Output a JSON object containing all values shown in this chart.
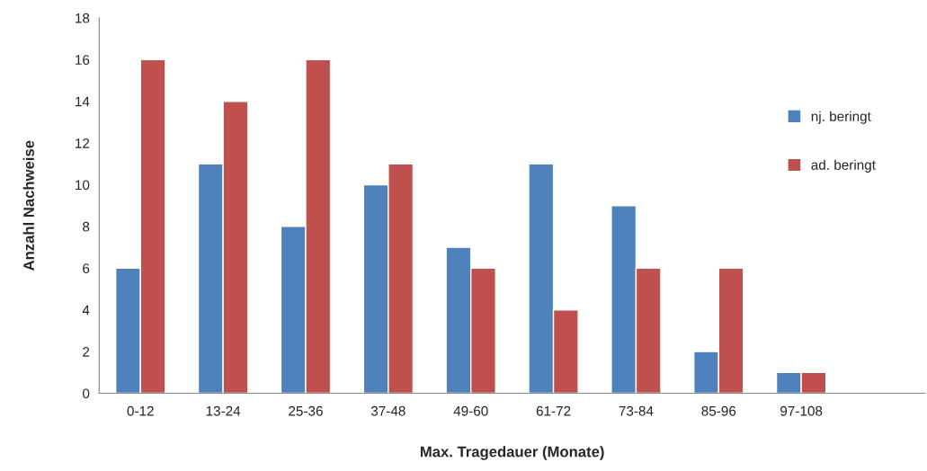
{
  "chart_data": {
    "type": "bar",
    "xlabel": "Max. Tragedauer (Monate)",
    "ylabel": "Anzahl Nachweise",
    "categories": [
      "0-12",
      "13-24",
      "25-36",
      "37-48",
      "49-60",
      "61-72",
      "73-84",
      "85-96",
      "97-108",
      null
    ],
    "series": [
      {
        "name": "nj. beringt",
        "color": "#4f81bd",
        "values": [
          6,
          11,
          8,
          10,
          7,
          11,
          9,
          2,
          1,
          null
        ]
      },
      {
        "name": "ad. beringt",
        "color": "#c0504d",
        "values": [
          16,
          14,
          16,
          11,
          6,
          4,
          6,
          6,
          1,
          null
        ]
      }
    ],
    "ylim": [
      0,
      18
    ],
    "yticks": [
      0,
      2,
      4,
      6,
      8,
      10,
      12,
      14,
      16,
      18
    ],
    "grid": false,
    "legend": "right"
  }
}
